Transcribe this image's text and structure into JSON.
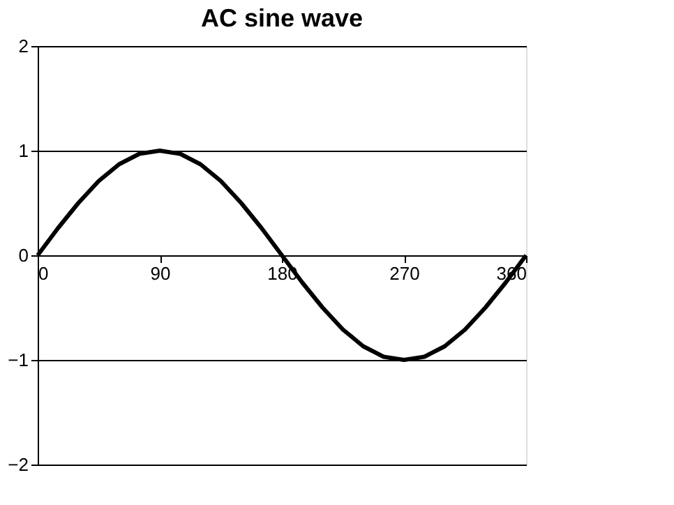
{
  "chart_data": {
    "type": "line",
    "title": "AC sine wave",
    "x": [
      0,
      15,
      30,
      45,
      60,
      75,
      90,
      105,
      120,
      135,
      150,
      165,
      180,
      195,
      210,
      225,
      240,
      255,
      270,
      285,
      300,
      315,
      330,
      345,
      360
    ],
    "series": [
      {
        "color": "#000000",
        "values": [
          0,
          0.26,
          0.5,
          0.71,
          0.87,
          0.97,
          1,
          0.97,
          0.87,
          0.71,
          0.5,
          0.26,
          0,
          -0.26,
          -0.5,
          -0.71,
          -0.87,
          -0.97,
          -1,
          -0.97,
          -0.87,
          -0.71,
          -0.5,
          -0.26,
          0
        ]
      }
    ],
    "xlim": [
      0,
      360
    ],
    "xticks": [
      0,
      90,
      180,
      270,
      360
    ],
    "ylim": [
      -2,
      2
    ],
    "yticks": [
      -2,
      -1,
      0,
      1,
      2
    ],
    "grid": "y",
    "marker": "none",
    "line_style": "solid"
  }
}
